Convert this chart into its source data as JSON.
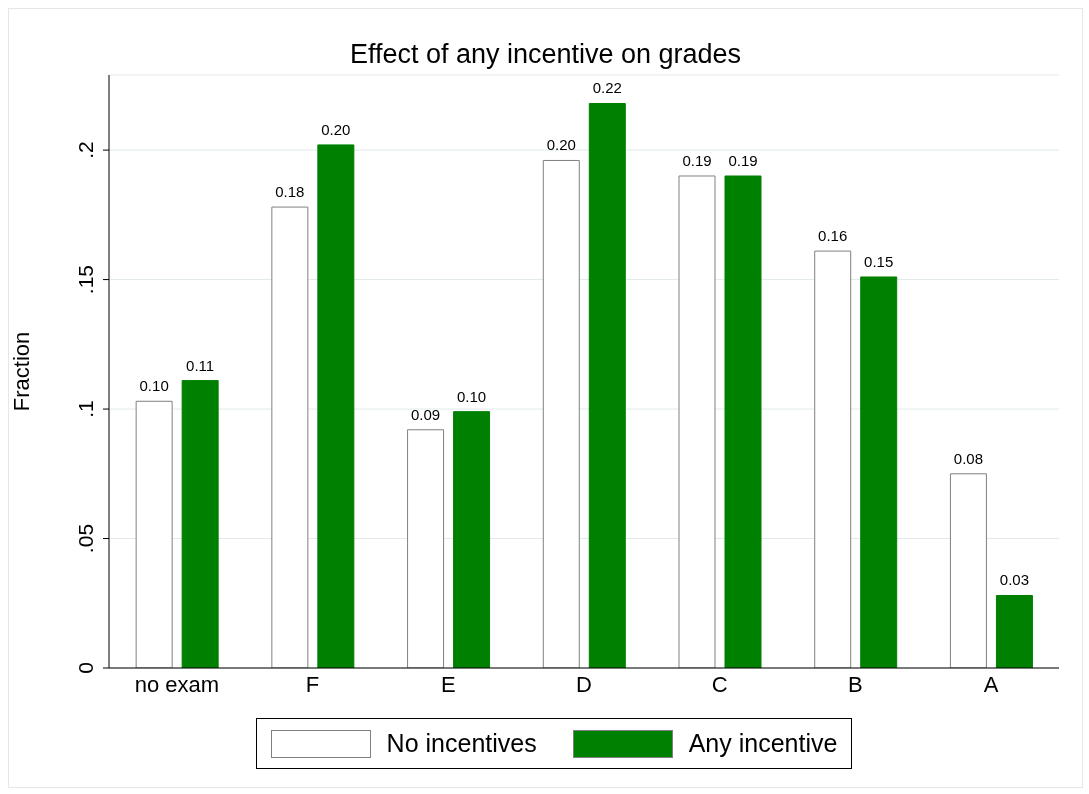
{
  "chart_data": {
    "type": "bar",
    "title": "Effect of any incentive on grades",
    "ylabel": "Fraction",
    "categories": [
      "no exam",
      "F",
      "E",
      "D",
      "C",
      "B",
      "A"
    ],
    "series": [
      {
        "name": "No incentives",
        "color": "#ffffff",
        "values": [
          0.103,
          0.178,
          0.092,
          0.196,
          0.19,
          0.161,
          0.075
        ],
        "value_labels": [
          "0.10",
          "0.18",
          "0.09",
          "0.20",
          "0.19",
          "0.16",
          "0.08"
        ]
      },
      {
        "name": "Any incentive",
        "color": "#008000",
        "values": [
          0.111,
          0.202,
          0.099,
          0.218,
          0.19,
          0.151,
          0.028
        ],
        "value_labels": [
          "0.11",
          "0.20",
          "0.10",
          "0.22",
          "0.19",
          "0.15",
          "0.03"
        ]
      }
    ],
    "ylim": [
      0,
      0.229
    ],
    "yticks": [
      {
        "value": 0,
        "label": "0"
      },
      {
        "value": 0.05,
        "label": ".05"
      },
      {
        "value": 0.1,
        "label": ".1"
      },
      {
        "value": 0.15,
        "label": ".15"
      },
      {
        "value": 0.2,
        "label": ".2"
      }
    ],
    "grid": "y",
    "legend": "bottom"
  }
}
